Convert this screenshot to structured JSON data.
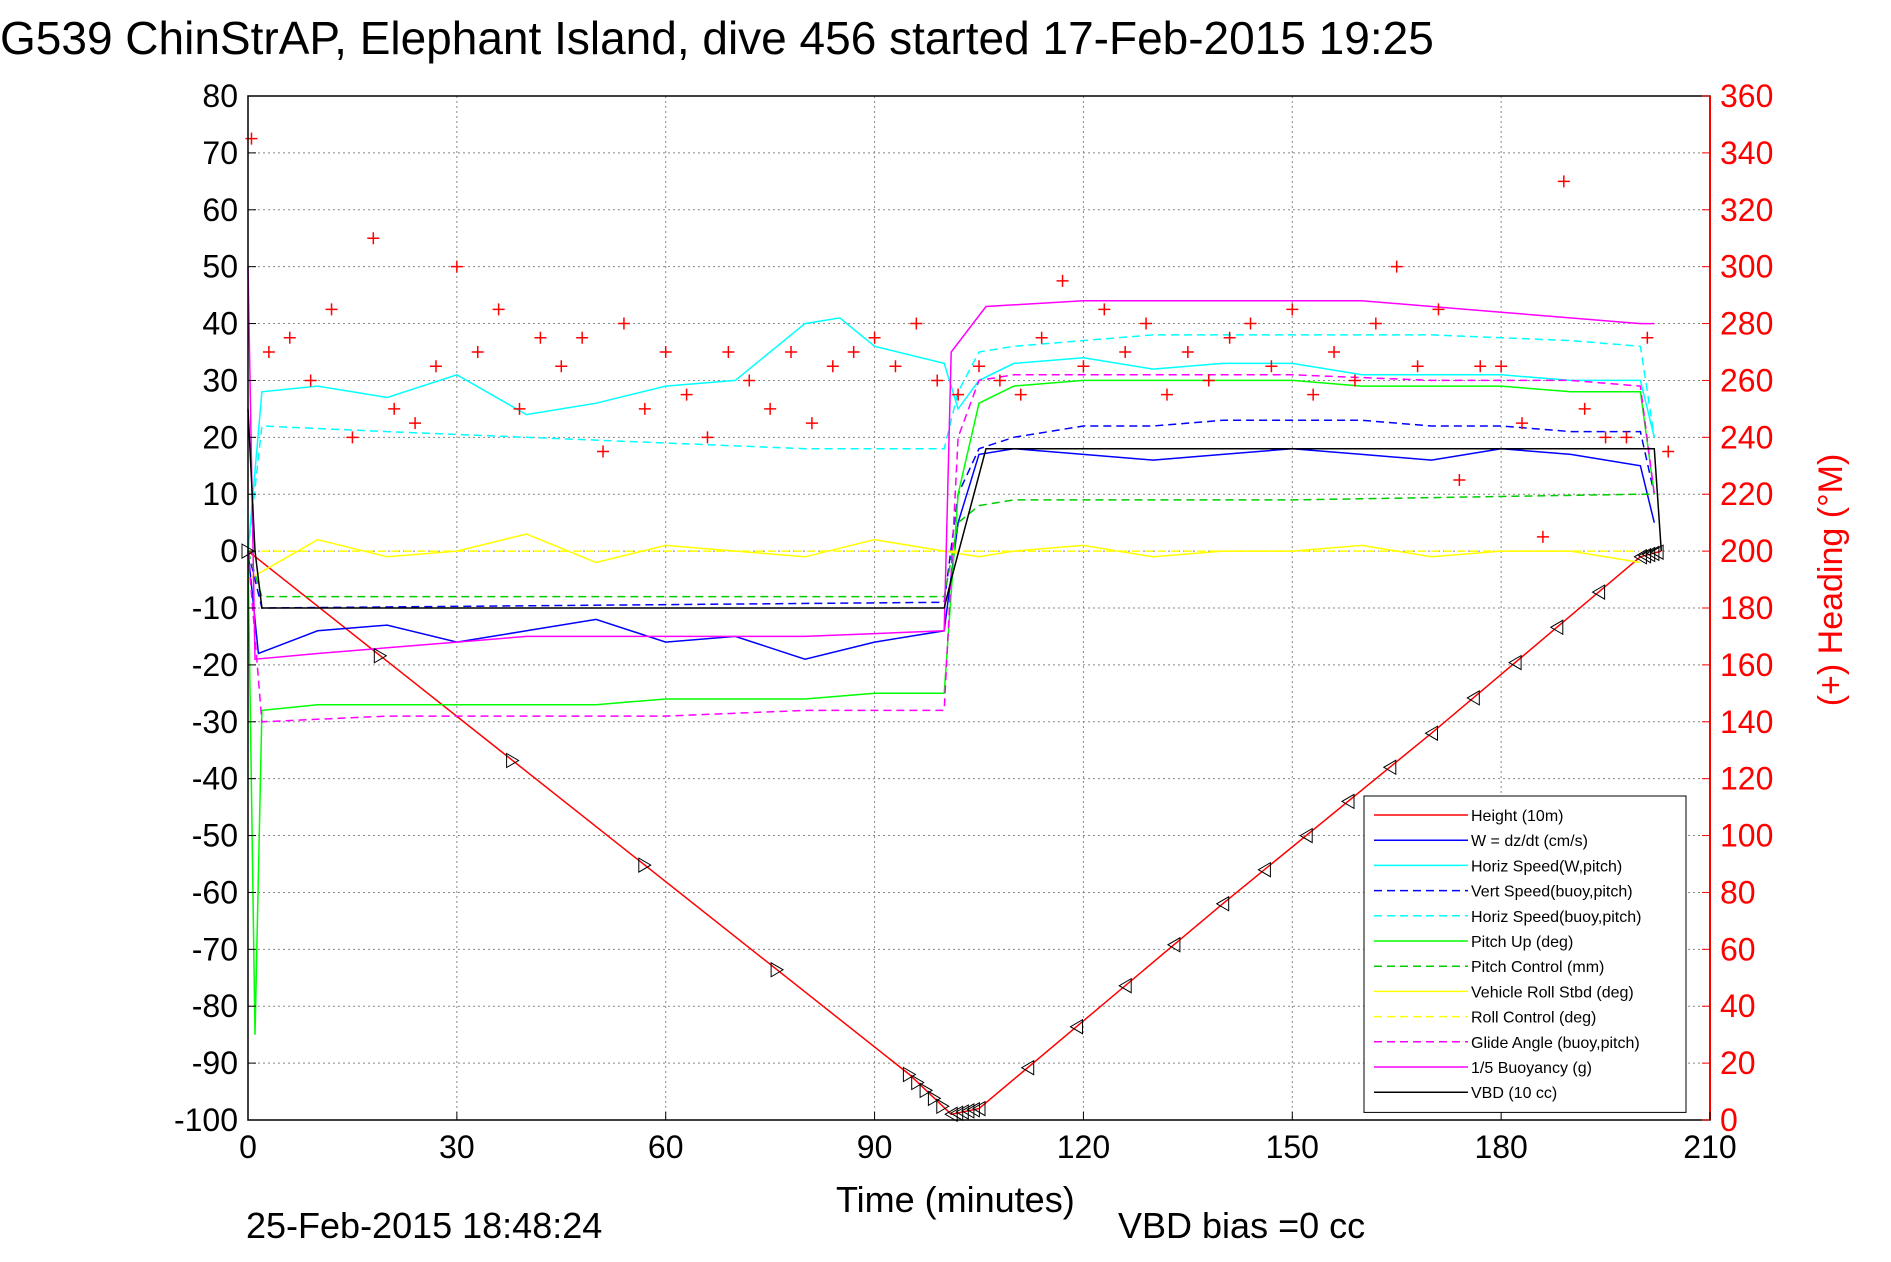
{
  "chart_data": {
    "type": "line",
    "title": "G539 ChinStrAP, Elephant Island, dive 456 started 17-Feb-2015 19:25",
    "xlabel": "Time (minutes)",
    "ylabel_right": "(+) Heading (°M)",
    "xlim": [
      0,
      210
    ],
    "ylim": [
      -100,
      80
    ],
    "ylim_right": [
      0,
      360
    ],
    "x_ticks": [
      "0",
      "30",
      "60",
      "90",
      "120",
      "150",
      "180",
      "210"
    ],
    "y_ticks": [
      "80",
      "70",
      "60",
      "50",
      "40",
      "30",
      "20",
      "10",
      "0",
      "-10",
      "-20",
      "-30",
      "-40",
      "-50",
      "-60",
      "-70",
      "-80",
      "-90",
      "-100"
    ],
    "y_right_ticks": [
      "360",
      "340",
      "320",
      "300",
      "280",
      "260",
      "240",
      "220",
      "200",
      "180",
      "160",
      "140",
      "120",
      "100",
      "80",
      "60",
      "40",
      "20",
      "0"
    ],
    "grid": true,
    "legend_position": "bottom-right",
    "footer_date": "25-Feb-2015 18:48:24",
    "footer_note": "VBD bias =0 cc",
    "series": [
      {
        "name": "Height (10m)",
        "color": "#ff0000",
        "style": "solid",
        "x": [
          0,
          95,
          101,
          105,
          140,
          170,
          200,
          203
        ],
        "y": [
          0,
          -92,
          -99,
          -98,
          -62,
          -32,
          -1,
          0
        ]
      },
      {
        "name": "W = dz/dt (cm/s)",
        "color": "#0000ff",
        "style": "solid",
        "x": [
          0,
          1.5,
          10,
          20,
          30,
          40,
          50,
          60,
          70,
          80,
          90,
          100,
          102,
          105,
          110,
          120,
          130,
          140,
          150,
          160,
          170,
          180,
          190,
          200,
          202
        ],
        "y": [
          0,
          -18,
          -14,
          -13,
          -16,
          -14,
          -12,
          -16,
          -15,
          -19,
          -16,
          -14,
          5,
          17,
          18,
          17,
          16,
          17,
          18,
          17,
          16,
          18,
          17,
          15,
          5
        ]
      },
      {
        "name": "Horiz Speed(W,pitch)",
        "color": "#00ffff",
        "style": "solid",
        "x": [
          0,
          2,
          10,
          20,
          30,
          40,
          50,
          60,
          70,
          80,
          85,
          90,
          100,
          102,
          105,
          110,
          120,
          130,
          140,
          150,
          160,
          170,
          180,
          190,
          200,
          202
        ],
        "y": [
          0,
          28,
          29,
          27,
          31,
          24,
          26,
          29,
          30,
          40,
          41,
          36,
          33,
          25,
          30,
          33,
          34,
          32,
          33,
          33,
          31,
          31,
          31,
          30,
          30,
          20
        ]
      },
      {
        "name": "Vert Speed(buoy,pitch)",
        "color": "#0000ff",
        "style": "dashed",
        "x": [
          0,
          2,
          100,
          102,
          105,
          110,
          120,
          130,
          140,
          150,
          160,
          170,
          180,
          190,
          200,
          202
        ],
        "y": [
          0,
          -10,
          -9,
          10,
          18,
          20,
          22,
          22,
          23,
          23,
          23,
          22,
          22,
          21,
          21,
          10
        ]
      },
      {
        "name": "Horiz Speed(buoy,pitch)",
        "color": "#00ffff",
        "style": "dashed",
        "x": [
          0,
          2,
          20,
          40,
          60,
          80,
          100,
          102,
          105,
          110,
          130,
          150,
          170,
          190,
          200,
          202
        ],
        "y": [
          0,
          22,
          21,
          20,
          19,
          18,
          18,
          28,
          35,
          36,
          38,
          38,
          38,
          37,
          36,
          20
        ]
      },
      {
        "name": "Pitch Up (deg)",
        "color": "#00ff00",
        "style": "solid",
        "x": [
          0,
          1,
          2,
          10,
          20,
          30,
          40,
          50,
          60,
          70,
          80,
          90,
          100,
          102,
          105,
          110,
          120,
          130,
          140,
          150,
          160,
          170,
          180,
          190,
          200,
          202
        ],
        "y": [
          0,
          -85,
          -28,
          -27,
          -27,
          -27,
          -27,
          -27,
          -26,
          -26,
          -26,
          -25,
          -25,
          10,
          26,
          29,
          30,
          30,
          30,
          30,
          29,
          29,
          29,
          28,
          28,
          10
        ]
      },
      {
        "name": "Pitch Control (mm)",
        "color": "#00cc00",
        "style": "dashed",
        "x": [
          0,
          2,
          100,
          102,
          105,
          110,
          150,
          200,
          202
        ],
        "y": [
          0,
          -8,
          -8,
          5,
          8,
          9,
          9,
          10,
          10
        ]
      },
      {
        "name": "Vehicle Roll Stbd (deg)",
        "color": "#ffff00",
        "style": "solid",
        "x": [
          0,
          10,
          20,
          30,
          40,
          50,
          60,
          70,
          80,
          90,
          100,
          105,
          110,
          120,
          130,
          140,
          150,
          160,
          170,
          180,
          190,
          200
        ],
        "y": [
          -5,
          2,
          -1,
          0,
          3,
          -2,
          1,
          0,
          -1,
          2,
          0,
          -1,
          0,
          1,
          -1,
          0,
          0,
          1,
          -1,
          0,
          0,
          -2
        ]
      },
      {
        "name": "Roll Control (deg)",
        "color": "#ffff00",
        "style": "dashed",
        "x": [
          0,
          50,
          100,
          150,
          200
        ],
        "y": [
          0,
          0,
          0,
          0,
          0
        ]
      },
      {
        "name": "Glide Angle (buoy,pitch)",
        "color": "#ff00ff",
        "style": "dashed",
        "x": [
          0,
          2,
          20,
          40,
          60,
          80,
          100,
          102,
          105,
          110,
          130,
          150,
          170,
          190,
          200,
          202
        ],
        "y": [
          0,
          -30,
          -29,
          -29,
          -29,
          -28,
          -28,
          20,
          30,
          31,
          31,
          31,
          30,
          30,
          29,
          10
        ]
      },
      {
        "name": "1/5 Buoyancy (g)",
        "color": "#ff00ff",
        "style": "solid",
        "x": [
          0,
          1,
          10,
          20,
          30,
          40,
          60,
          80,
          100,
          101,
          106,
          120,
          140,
          160,
          180,
          200,
          202
        ],
        "y": [
          50,
          -19,
          -18,
          -17,
          -16,
          -15,
          -15,
          -15,
          -14,
          35,
          43,
          44,
          44,
          44,
          42,
          40,
          40
        ]
      },
      {
        "name": "VBD (10 cc)",
        "color": "#000000",
        "style": "solid",
        "x": [
          0,
          1,
          2,
          100,
          101,
          106,
          150,
          202,
          203
        ],
        "y": [
          25,
          0,
          -10,
          -10,
          -5,
          18,
          18,
          18,
          0
        ]
      }
    ],
    "heading": {
      "name": "(+) Heading (°M)",
      "color": "#ff0000",
      "marker": "+",
      "axis": "right",
      "x": [
        0.5,
        3,
        6,
        9,
        12,
        15,
        18,
        21,
        24,
        27,
        30,
        33,
        36,
        39,
        42,
        45,
        48,
        51,
        54,
        57,
        60,
        63,
        66,
        69,
        72,
        75,
        78,
        81,
        84,
        87,
        90,
        93,
        96,
        99,
        102,
        105,
        108,
        111,
        114,
        117,
        120,
        123,
        126,
        129,
        132,
        135,
        138,
        141,
        144,
        147,
        150,
        153,
        156,
        159,
        162,
        165,
        168,
        171,
        174,
        177,
        180,
        183,
        186,
        189,
        192,
        195,
        198,
        201,
        204
      ],
      "y": [
        345,
        270,
        275,
        260,
        285,
        240,
        310,
        250,
        245,
        265,
        300,
        270,
        285,
        250,
        275,
        265,
        275,
        235,
        280,
        250,
        270,
        255,
        240,
        270,
        260,
        250,
        270,
        245,
        265,
        270,
        275,
        265,
        280,
        260,
        255,
        265,
        260,
        255,
        275,
        295,
        265,
        285,
        270,
        280,
        255,
        270,
        260,
        275,
        280,
        265,
        285,
        255,
        270,
        260,
        280,
        300,
        265,
        285,
        225,
        265,
        265,
        245,
        205,
        330,
        250,
        240,
        240,
        275,
        235
      ]
    }
  }
}
